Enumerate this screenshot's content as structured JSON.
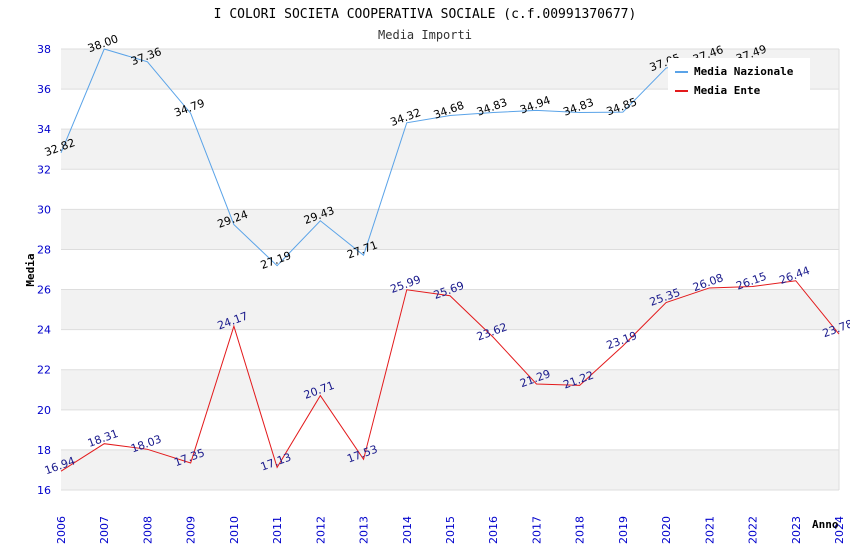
{
  "chart_data": {
    "type": "line",
    "title": "I COLORI SOCIETA COOPERATIVA SOCIALE (c.f.00991370677)",
    "subtitle": "Media Importi",
    "xlabel": "Anno",
    "ylabel": "Media",
    "ylim": [
      16,
      38
    ],
    "yticks": [
      16,
      18,
      20,
      22,
      24,
      26,
      28,
      30,
      32,
      34,
      36,
      38
    ],
    "ytick_labels": [
      "16",
      "18",
      "20",
      "22",
      "24",
      "26",
      "28",
      "30",
      "32",
      "34",
      "36",
      "38"
    ],
    "categories": [
      "2006",
      "2007",
      "2008",
      "2009",
      "2010",
      "2011",
      "2012",
      "2013",
      "2014",
      "2015",
      "2016",
      "2017",
      "2018",
      "2019",
      "2020",
      "2021",
      "2022",
      "2023",
      "2024"
    ],
    "series": [
      {
        "name": "Media Nazionale",
        "color": "#5aa3e8",
        "label_color": "#000000",
        "values": [
          32.82,
          38.0,
          37.36,
          34.79,
          29.24,
          27.19,
          29.43,
          27.71,
          34.32,
          34.68,
          34.83,
          34.94,
          34.83,
          34.85,
          37.05,
          37.46,
          37.49,
          null,
          null
        ],
        "labels": [
          "32.82",
          "38.00",
          "37.36",
          "34.79",
          "29.24",
          "27.19",
          "29.43",
          "27.71",
          "34.32",
          "34.68",
          "34.83",
          "34.94",
          "34.83",
          "34.85",
          "37.05",
          "37.46",
          "37.49",
          "",
          ""
        ]
      },
      {
        "name": "Media Ente",
        "color": "#e31a1c",
        "label_color": "#1a1a8c",
        "values": [
          16.94,
          18.31,
          18.03,
          17.35,
          24.17,
          17.13,
          20.71,
          17.53,
          25.99,
          25.69,
          23.62,
          21.29,
          21.22,
          23.19,
          25.35,
          26.08,
          26.15,
          26.44,
          23.78
        ],
        "labels": [
          "16.94",
          "18.31",
          "18.03",
          "17.35",
          "24.17",
          "17.13",
          "20.71",
          "17.53",
          "25.99",
          "25.69",
          "23.62",
          "21.29",
          "21.22",
          "23.19",
          "25.35",
          "26.08",
          "26.15",
          "26.44",
          "23.78"
        ]
      }
    ],
    "legend_position": "top-right",
    "band_color": "#f2f2f2",
    "grid_color": "#dddddd",
    "tick_color": "#0000cc"
  }
}
